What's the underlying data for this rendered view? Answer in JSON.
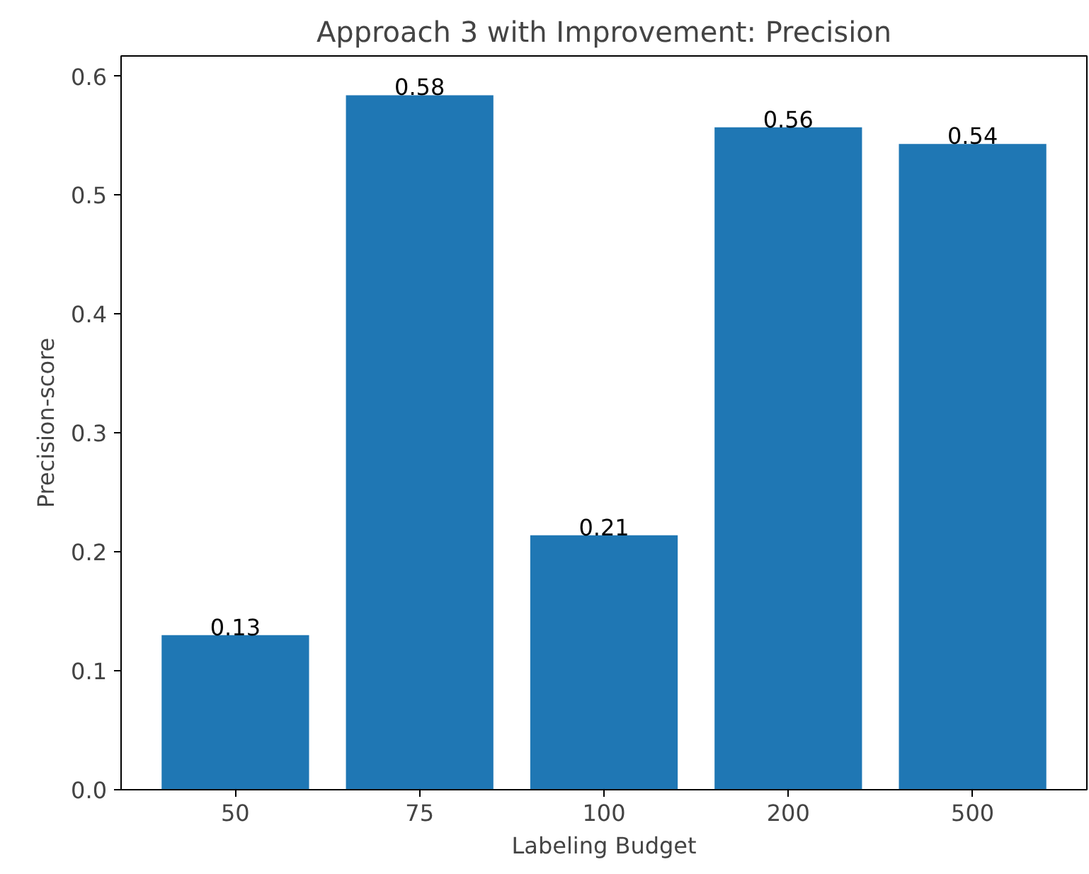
{
  "chart_data": {
    "type": "bar",
    "title": "Approach 3 with Improvement: Precision",
    "xlabel": "Labeling Budget",
    "ylabel": "Precision-score",
    "categories": [
      "50",
      "75",
      "100",
      "200",
      "500"
    ],
    "values": [
      0.13,
      0.584,
      0.214,
      0.557,
      0.543
    ],
    "value_labels": [
      "0.13",
      "0.58",
      "0.21",
      "0.56",
      "0.54"
    ],
    "color": "#1f77b4",
    "ylim": [
      0,
      0.617
    ],
    "yticks": [
      {
        "value": 0,
        "label": "0.0"
      },
      0.1,
      0.2,
      0.3,
      0.4,
      0.5,
      0.6
    ],
    "grid": false
  }
}
